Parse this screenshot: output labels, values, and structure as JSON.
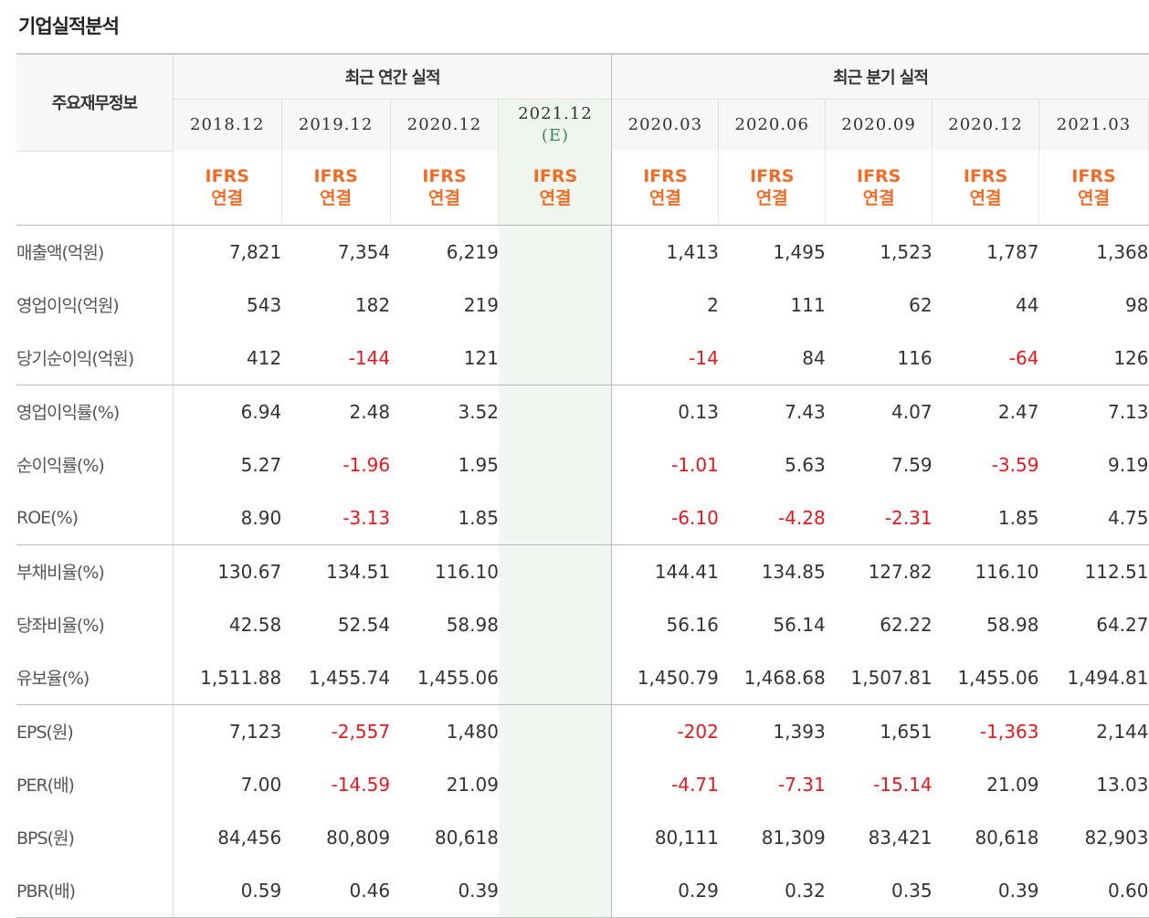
{
  "title": "기업실적분석",
  "header": {
    "corner": "주요재무정보",
    "annual_label": "최근 연간 실적",
    "quarter_label": "최근 분기 실적",
    "annual_periods": [
      {
        "date": "2018.12",
        "mark": ""
      },
      {
        "date": "2019.12",
        "mark": ""
      },
      {
        "date": "2020.12",
        "mark": ""
      },
      {
        "date": "2021.12",
        "mark": "(E)"
      }
    ],
    "quarter_periods": [
      "2020.03",
      "2020.06",
      "2020.09",
      "2020.12",
      "2021.03"
    ],
    "ifrs_top": "IFRS",
    "ifrs_bottom": "연결"
  },
  "rows": [
    {
      "label": "매출액(억원)",
      "values": [
        "7,821",
        "7,354",
        "6,219",
        "",
        "1,413",
        "1,495",
        "1,523",
        "1,787",
        "1,368"
      ]
    },
    {
      "label": "영업이익(억원)",
      "values": [
        "543",
        "182",
        "219",
        "",
        "2",
        "111",
        "62",
        "44",
        "98"
      ]
    },
    {
      "label": "당기순이익(억원)",
      "values": [
        "412",
        "-144",
        "121",
        "",
        "-14",
        "84",
        "116",
        "-64",
        "126"
      ]
    },
    {
      "label": "영업이익률(%)",
      "values": [
        "6.94",
        "2.48",
        "3.52",
        "",
        "0.13",
        "7.43",
        "4.07",
        "2.47",
        "7.13"
      ]
    },
    {
      "label": "순이익률(%)",
      "values": [
        "5.27",
        "-1.96",
        "1.95",
        "",
        "-1.01",
        "5.63",
        "7.59",
        "-3.59",
        "9.19"
      ]
    },
    {
      "label": "ROE(%)",
      "values": [
        "8.90",
        "-3.13",
        "1.85",
        "",
        "-6.10",
        "-4.28",
        "-2.31",
        "1.85",
        "4.75"
      ]
    },
    {
      "label": "부채비율(%)",
      "values": [
        "130.67",
        "134.51",
        "116.10",
        "",
        "144.41",
        "134.85",
        "127.82",
        "116.10",
        "112.51"
      ]
    },
    {
      "label": "당좌비율(%)",
      "values": [
        "42.58",
        "52.54",
        "58.98",
        "",
        "56.16",
        "56.14",
        "62.22",
        "58.98",
        "64.27"
      ]
    },
    {
      "label": "유보율(%)",
      "values": [
        "1,511.88",
        "1,455.74",
        "1,455.06",
        "",
        "1,450.79",
        "1,468.68",
        "1,507.81",
        "1,455.06",
        "1,494.81"
      ]
    },
    {
      "label": "EPS(원)",
      "values": [
        "7,123",
        "-2,557",
        "1,480",
        "",
        "-202",
        "1,393",
        "1,651",
        "-1,363",
        "2,144"
      ]
    },
    {
      "label": "PER(배)",
      "values": [
        "7.00",
        "-14.59",
        "21.09",
        "",
        "-4.71",
        "-7.31",
        "-15.14",
        "21.09",
        "13.03"
      ]
    },
    {
      "label": "BPS(원)",
      "values": [
        "84,456",
        "80,809",
        "80,618",
        "",
        "80,111",
        "81,309",
        "83,421",
        "80,618",
        "82,903"
      ]
    },
    {
      "label": "PBR(배)",
      "values": [
        "0.59",
        "0.46",
        "0.39",
        "",
        "0.29",
        "0.32",
        "0.35",
        "0.39",
        "0.60"
      ]
    }
  ],
  "colors": {
    "negative": "#e0191e",
    "ifrs": "#ef6d28",
    "estimate": "#3a8a55"
  }
}
